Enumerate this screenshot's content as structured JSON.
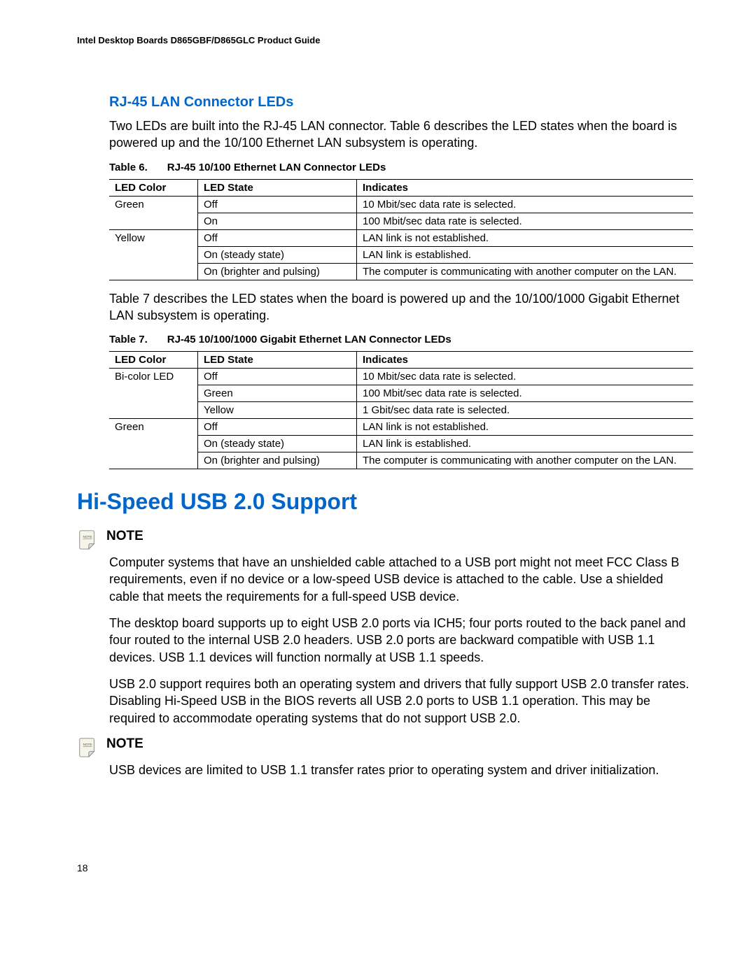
{
  "header": "Intel Desktop Boards D865GBF/D865GLC Product Guide",
  "section1": {
    "title": "RJ-45 LAN Connector LEDs",
    "intro": "Two LEDs are built into the RJ-45 LAN connector.  Table 6 describes the LED states when the board is powered up and the 10/100 Ethernet LAN subsystem is operating."
  },
  "table6": {
    "caption_prefix": "Table 6.",
    "caption": "RJ-45 10/100 Ethernet LAN Connector LEDs",
    "headers": [
      "LED Color",
      "LED State",
      "Indicates"
    ],
    "rows": [
      {
        "c0": "Green",
        "c1": "Off",
        "c2": "10 Mbit/sec data rate is selected.",
        "span": 2,
        "first": true
      },
      {
        "c1": "On",
        "c2": "100 Mbit/sec data rate is selected."
      },
      {
        "c0": "Yellow",
        "c1": "Off",
        "c2": "LAN link is not established.",
        "span": 3,
        "first": true
      },
      {
        "c1": "On (steady state)",
        "c2": "LAN link is established."
      },
      {
        "c1": "On (brighter and pulsing)",
        "c2": "The computer is communicating with another computer on the LAN.",
        "last": true
      }
    ]
  },
  "between_tables": "Table 7 describes the LED states when the board is powered up and the 10/100/1000 Gigabit Ethernet LAN subsystem is operating.",
  "table7": {
    "caption_prefix": "Table 7.",
    "caption": "RJ-45 10/100/1000 Gigabit Ethernet LAN Connector LEDs",
    "headers": [
      "LED Color",
      "LED State",
      "Indicates"
    ],
    "rows": [
      {
        "c0": "Bi-color LED",
        "c1": "Off",
        "c2": "10 Mbit/sec data rate is selected.",
        "span": 3,
        "first": true
      },
      {
        "c1": "Green",
        "c2": "100 Mbit/sec data rate is selected."
      },
      {
        "c1": "Yellow",
        "c2": "1 Gbit/sec data rate is selected."
      },
      {
        "c0": "Green",
        "c1": "Off",
        "c2": "LAN link is not established.",
        "span": 3,
        "first": true
      },
      {
        "c1": "On (steady state)",
        "c2": "LAN link is established."
      },
      {
        "c1": "On (brighter and pulsing)",
        "c2": "The computer is communicating with another computer on the LAN.",
        "last": true
      }
    ]
  },
  "usb": {
    "heading": "Hi-Speed USB 2.0 Support",
    "note1_label": "NOTE",
    "note1_body": "Computer systems that have an unshielded cable attached to a USB port might not meet FCC Class B requirements, even if no device or a low-speed USB device is attached to the cable.  Use a shielded cable that meets the requirements for a full-speed USB device.",
    "para1": "The desktop board supports up to eight USB 2.0 ports via ICH5; four ports routed to the back panel and four routed to the internal USB 2.0 headers.  USB 2.0 ports are backward compatible with USB 1.1 devices.  USB 1.1 devices will function normally at USB 1.1 speeds.",
    "para2": "USB 2.0 support requires both an operating system and drivers that fully support USB 2.0 transfer rates.  Disabling Hi-Speed USB in the BIOS reverts all USB 2.0 ports to USB 1.1 operation.  This may be required to accommodate operating systems that do not support USB 2.0.",
    "note2_label": "NOTE",
    "note2_body": "USB devices are limited to USB 1.1 transfer rates prior to operating system and driver initialization."
  },
  "page_number": "18",
  "colors": {
    "heading_blue": "#0066cc",
    "text_black": "#000000"
  }
}
